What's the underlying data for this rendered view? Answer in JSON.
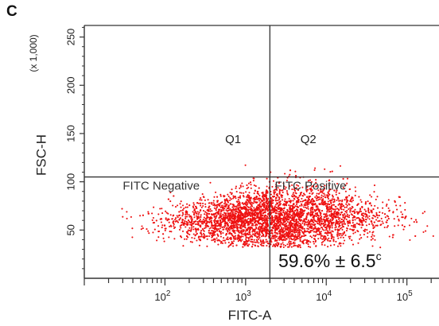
{
  "panel_label": "C",
  "chart_data": {
    "type": "scatter",
    "xlabel": "FITC-A",
    "ylabel": "FSC-H",
    "y_multiplier_label": "(x 1,000)",
    "x_scale": "log",
    "xlim": [
      10,
      250000
    ],
    "ylim": [
      0,
      262
    ],
    "x_ticks": [
      {
        "value": 100,
        "base": "10",
        "exp": "2"
      },
      {
        "value": 1000,
        "base": "10",
        "exp": "3"
      },
      {
        "value": 10000,
        "base": "10",
        "exp": "4"
      },
      {
        "value": 100000,
        "base": "10",
        "exp": "5"
      }
    ],
    "y_ticks": [
      {
        "value": 50,
        "label": "50"
      },
      {
        "value": 100,
        "label": "100"
      },
      {
        "value": 150,
        "label": "150"
      },
      {
        "value": 200,
        "label": "200"
      },
      {
        "value": 250,
        "label": "250"
      }
    ],
    "gate": {
      "x": 2000,
      "y": 105
    },
    "quadrants": [
      {
        "name": "Q1",
        "x": 700,
        "y": 140
      },
      {
        "name": "Q2",
        "x": 6000,
        "y": 140
      }
    ],
    "gate_labels": [
      {
        "text": "FITC Negative",
        "x": 30,
        "y": 92
      },
      {
        "text": "FITC Positive",
        "x": 2300,
        "y": 92
      }
    ],
    "statistic": {
      "text": "59.6% ± 6.5",
      "superscript": "c"
    },
    "point_color": "#ee1111",
    "grid": false
  }
}
